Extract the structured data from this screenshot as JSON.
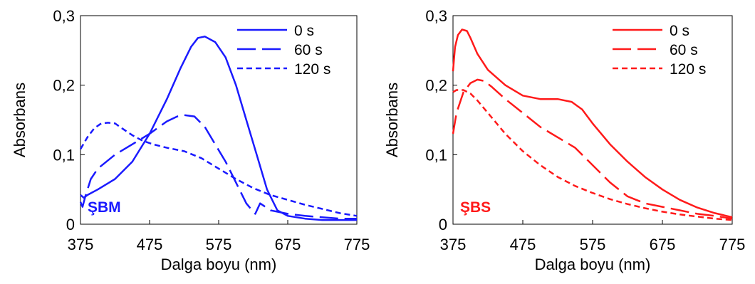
{
  "chart_data": [
    {
      "type": "line",
      "xlabel": "Dalga boyu (nm)",
      "ylabel": "Absorbans",
      "xlim": [
        375,
        775
      ],
      "ylim": [
        0,
        0.3
      ],
      "x_ticks": [
        375,
        475,
        575,
        675,
        775
      ],
      "y_ticks": [
        0,
        0.1,
        0.2,
        0.3
      ],
      "y_tick_labels": [
        "0",
        "0,1",
        "0,2",
        "0,3"
      ],
      "annotation": "ŞBM",
      "color": "#1a1aff",
      "legend_position": "top-right",
      "grid": false,
      "series": [
        {
          "name": "0 s",
          "dash": "solid",
          "x": [
            375,
            380,
            385,
            400,
            425,
            450,
            475,
            500,
            520,
            535,
            545,
            555,
            570,
            585,
            600,
            615,
            630,
            645,
            660,
            675,
            700,
            725,
            750,
            775
          ],
          "y": [
            0.042,
            0.038,
            0.042,
            0.05,
            0.065,
            0.09,
            0.13,
            0.18,
            0.225,
            0.255,
            0.268,
            0.27,
            0.262,
            0.24,
            0.2,
            0.15,
            0.1,
            0.05,
            0.02,
            0.012,
            0.008,
            0.006,
            0.006,
            0.006
          ]
        },
        {
          "name": "60 s",
          "dash": "long",
          "x": [
            375,
            378,
            382,
            390,
            400,
            425,
            450,
            475,
            500,
            515,
            525,
            540,
            555,
            570,
            585,
            600,
            615,
            625,
            628,
            635,
            650,
            675,
            700,
            725,
            750,
            775
          ],
          "y": [
            0.032,
            0.025,
            0.04,
            0.065,
            0.08,
            0.1,
            0.115,
            0.13,
            0.148,
            0.155,
            0.157,
            0.155,
            0.14,
            0.115,
            0.09,
            0.06,
            0.03,
            0.018,
            0.015,
            0.03,
            0.02,
            0.015,
            0.012,
            0.01,
            0.008,
            0.008
          ]
        },
        {
          "name": "120 s",
          "dash": "short",
          "x": [
            375,
            385,
            395,
            405,
            415,
            425,
            435,
            450,
            465,
            480,
            500,
            525,
            550,
            575,
            600,
            625,
            650,
            675,
            700,
            725,
            750,
            775
          ],
          "y": [
            0.108,
            0.125,
            0.138,
            0.145,
            0.146,
            0.145,
            0.138,
            0.128,
            0.12,
            0.115,
            0.11,
            0.105,
            0.095,
            0.08,
            0.065,
            0.052,
            0.042,
            0.035,
            0.028,
            0.022,
            0.016,
            0.012
          ]
        }
      ]
    },
    {
      "type": "line",
      "xlabel": "Dalga boyu (nm)",
      "ylabel": "Absorbans",
      "xlim": [
        375,
        775
      ],
      "ylim": [
        0,
        0.3
      ],
      "x_ticks": [
        375,
        475,
        575,
        675,
        775
      ],
      "y_ticks": [
        0,
        0.1,
        0.2,
        0.3
      ],
      "y_tick_labels": [
        "0",
        "0,1",
        "0,2",
        "0,3"
      ],
      "annotation": "ŞBS",
      "color": "#ff1a1a",
      "legend_position": "top-right",
      "grid": false,
      "series": [
        {
          "name": "0 s",
          "dash": "solid",
          "x": [
            375,
            378,
            382,
            388,
            395,
            400,
            410,
            425,
            450,
            475,
            500,
            525,
            545,
            560,
            575,
            600,
            625,
            650,
            675,
            700,
            725,
            750,
            775
          ],
          "y": [
            0.22,
            0.255,
            0.272,
            0.28,
            0.278,
            0.268,
            0.245,
            0.222,
            0.2,
            0.185,
            0.18,
            0.18,
            0.176,
            0.165,
            0.145,
            0.115,
            0.09,
            0.068,
            0.05,
            0.035,
            0.024,
            0.016,
            0.01
          ]
        },
        {
          "name": "60 s",
          "dash": "long",
          "x": [
            375,
            380,
            390,
            400,
            410,
            420,
            430,
            450,
            475,
            500,
            525,
            550,
            575,
            600,
            625,
            650,
            675,
            700,
            725,
            750,
            775
          ],
          "y": [
            0.13,
            0.16,
            0.19,
            0.203,
            0.208,
            0.206,
            0.198,
            0.18,
            0.16,
            0.14,
            0.125,
            0.11,
            0.085,
            0.06,
            0.04,
            0.03,
            0.025,
            0.02,
            0.015,
            0.012,
            0.008
          ]
        },
        {
          "name": "120 s",
          "dash": "short",
          "x": [
            375,
            380,
            390,
            400,
            410,
            425,
            450,
            475,
            500,
            525,
            550,
            575,
            600,
            625,
            650,
            675,
            700,
            725,
            750,
            775
          ],
          "y": [
            0.19,
            0.193,
            0.193,
            0.188,
            0.178,
            0.16,
            0.13,
            0.105,
            0.085,
            0.068,
            0.055,
            0.045,
            0.036,
            0.029,
            0.023,
            0.018,
            0.014,
            0.011,
            0.008,
            0.006
          ]
        }
      ]
    }
  ]
}
